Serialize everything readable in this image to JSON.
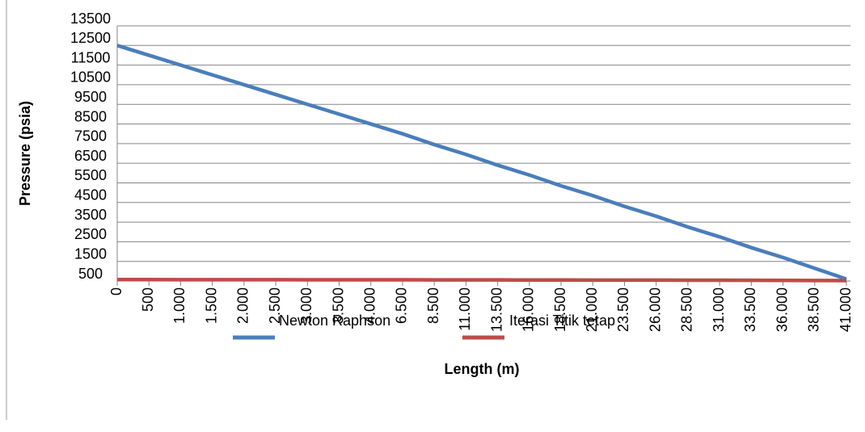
{
  "chart_data": {
    "type": "line",
    "x_label": "Length (m)",
    "y_label": "Pressure (psia)",
    "categories": [
      "0",
      "500",
      "1.000",
      "1.500",
      "2.000",
      "2.500",
      "3.000",
      "3.500",
      "4.000",
      "6.500",
      "8.500",
      "11.000",
      "13.500",
      "16.000",
      "18.500",
      "21.000",
      "23.500",
      "26.000",
      "28.500",
      "31.000",
      "33.500",
      "36.000",
      "38.500",
      "41.000"
    ],
    "series": [
      {
        "name": "Newton Raphson",
        "color": "#4a7ebb",
        "values": [
          12500,
          12000,
          11500,
          11000,
          10500,
          10000,
          9500,
          9000,
          8500,
          8000,
          7450,
          6950,
          6400,
          5900,
          5350,
          4850,
          4300,
          3800,
          3250,
          2750,
          2200,
          1700,
          1150,
          600
        ]
      },
      {
        "name": "Iterasi Titik tetap",
        "color": "#be4b48",
        "values": [
          570,
          570,
          568,
          567,
          566,
          565,
          564,
          563,
          562,
          560,
          558,
          556,
          554,
          552,
          550,
          548,
          546,
          544,
          542,
          540,
          535,
          530,
          525,
          520
        ]
      }
    ],
    "ylim": [
      500,
      13500
    ],
    "yticks": [
      500,
      1500,
      2500,
      3500,
      4500,
      5500,
      6500,
      7500,
      8500,
      9500,
      10500,
      11500,
      12500,
      13500
    ],
    "grid": true,
    "legend": "bottom"
  }
}
